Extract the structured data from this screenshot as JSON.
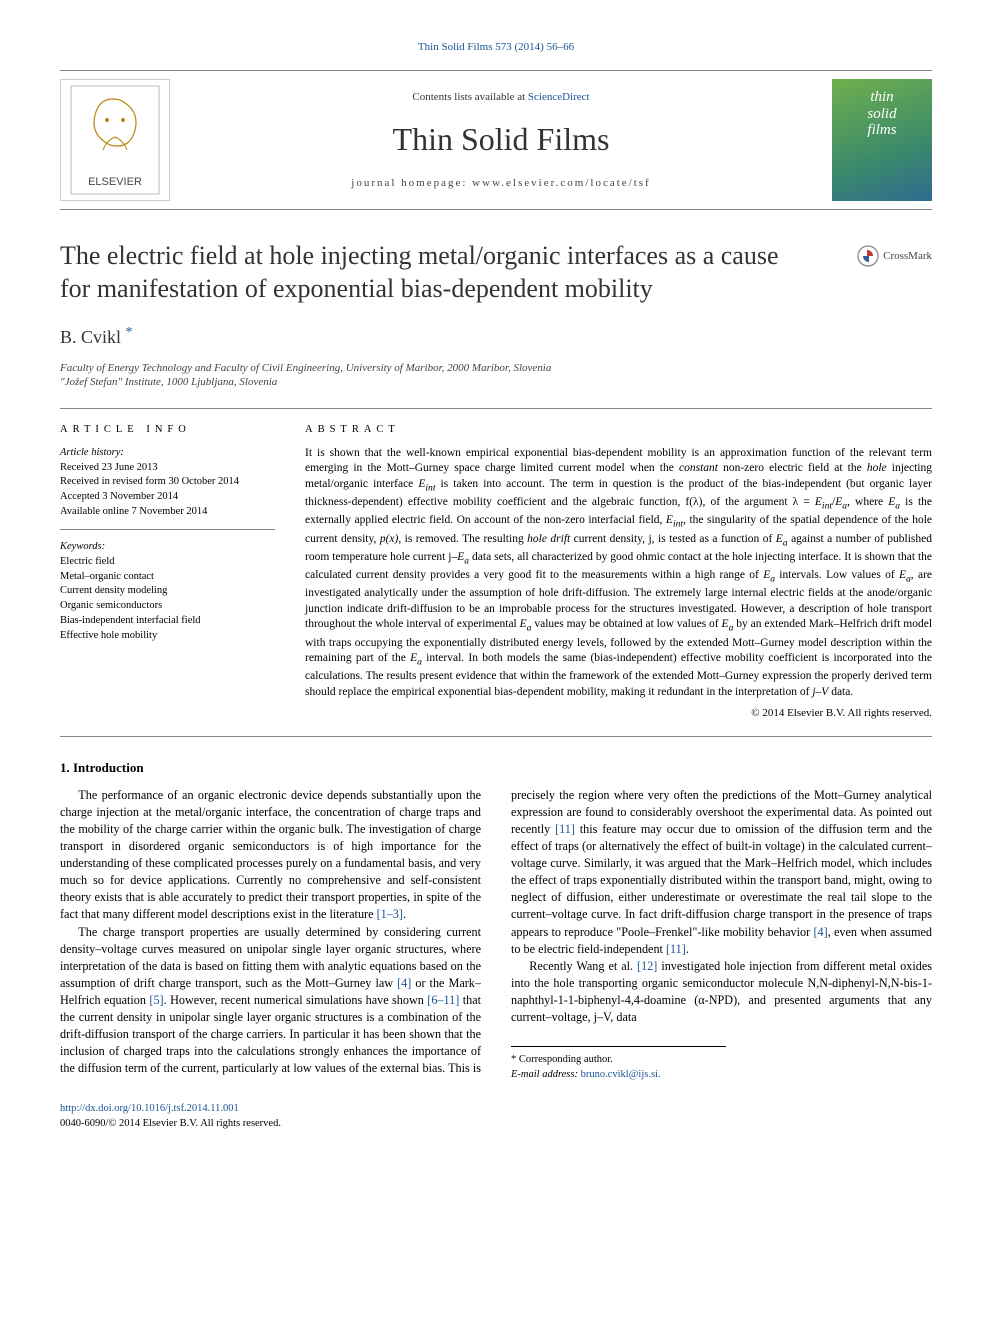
{
  "citation": "Thin Solid Films 573 (2014) 56–66",
  "header": {
    "contents_prefix": "Contents lists available at ",
    "contents_link": "ScienceDirect",
    "journal_name": "Thin Solid Films",
    "homepage_label": "journal homepage: www.elsevier.com/locate/tsf",
    "cover_line1": "thin",
    "cover_line2": "solid",
    "cover_line3": "films"
  },
  "crossmark_label": "CrossMark",
  "title": "The electric field at hole injecting metal/organic interfaces as a cause for manifestation of exponential bias-dependent mobility",
  "author": "B. Cvikl",
  "star_glyph": "*",
  "affiliations": [
    "Faculty of Energy Technology and Faculty of Civil Engineering, University of Maribor, 2000 Maribor, Slovenia",
    "\"Jožef Stefan\" Institute, 1000 Ljubljana, Slovenia"
  ],
  "article_info_heading": "ARTICLE INFO",
  "abstract_heading": "ABSTRACT",
  "history": {
    "label": "Article history:",
    "lines": [
      "Received 23 June 2013",
      "Received in revised form 30 October 2014",
      "Accepted 3 November 2014",
      "Available online 7 November 2014"
    ]
  },
  "keywords": {
    "label": "Keywords:",
    "items": [
      "Electric field",
      "Metal–organic contact",
      "Current density modeling",
      "Organic semiconductors",
      "Bias-independent interfacial field",
      "Effective hole mobility"
    ]
  },
  "abstract_text": "It is shown that the well-known empirical exponential bias-dependent mobility is an approximation function of the relevant term emerging in the Mott–Gurney space charge limited current model when the constant non-zero electric field at the hole injecting metal/organic interface Eint is taken into account. The term in question is the product of the bias-independent (but organic layer thickness-dependent) effective mobility coefficient and the algebraic function, f(λ), of the argument λ = Eint/Ea, where Ea is the externally applied electric field. On account of the non-zero interfacial field, Eint, the singularity of the spatial dependence of the hole current density, p(x), is removed. The resulting hole drift current density, j, is tested as a function of Ea against a number of published room temperature hole current j–Ea data sets, all characterized by good ohmic contact at the hole injecting interface. It is shown that the calculated current density provides a very good fit to the measurements within a high range of Ea intervals. Low values of Ea, are investigated analytically under the assumption of hole drift-diffusion. The extremely large internal electric fields at the anode/organic junction indicate drift-diffusion to be an improbable process for the structures investigated. However, a description of hole transport throughout the whole interval of experimental Ea values may be obtained at low values of Ea by an extended Mark–Helfrich drift model with traps occupying the exponentially distributed energy levels, followed by the extended Mott–Gurney model description within the remaining part of the Ea interval. In both models the same (bias-independent) effective mobility coefficient is incorporated into the calculations. The results present evidence that within the framework of the extended Mott–Gurney expression the properly derived term should replace the empirical exponential bias-dependent mobility, making it redundant in the interpretation of j–V data.",
  "abstract_copyright": "© 2014 Elsevier B.V. All rights reserved.",
  "section1_heading": "1. Introduction",
  "paragraphs": [
    "The performance of an organic electronic device depends substantially upon the charge injection at the metal/organic interface, the concentration of charge traps and the mobility of the charge carrier within the organic bulk. The investigation of charge transport in disordered organic semiconductors is of high importance for the understanding of these complicated processes purely on a fundamental basis, and very much so for device applications. Currently no comprehensive and self-consistent theory exists that is able accurately to predict their transport properties, in spite of the fact that many different model descriptions exist in the literature [1–3].",
    "The charge transport properties are usually determined by considering current density–voltage curves measured on unipolar single layer organic structures, where interpretation of the data is based on fitting them with analytic equations based on the assumption of drift charge transport, such as the Mott–Gurney law [4] or the Mark–Helfrich equation [5]. However, recent numerical simulations have shown [6–11] that the current density in unipolar single layer organic structures is a combination of the drift-diffusion transport of the charge carriers. In particular it has been shown that the inclusion of charged traps into the calculations strongly enhances the importance of the diffusion term of the current, particularly at low values of the external bias. This is precisely the region where very often the predictions of the Mott–Gurney analytical expression are found to considerably overshoot the experimental data. As pointed out recently [11] this feature may occur due to omission of the diffusion term and the effect of traps (or alternatively the effect of built-in voltage) in the calculated current–voltage curve. Similarly, it was argued that the Mark–Helfrich model, which includes the effect of traps exponentially distributed within the transport band, might, owing to neglect of diffusion, either underestimate or overestimate the real tail slope to the current–voltage curve. In fact drift-diffusion charge transport in the presence of traps appears to reproduce \"Poole–Frenkel\"-like mobility behavior [4], even when assumed to be electric field-independent [11].",
    "Recently Wang et al. [12] investigated hole injection from different metal oxides into the hole transporting organic semiconductor molecule N,N-diphenyl-N,N-bis-1-naphthyl-1-1-biphenyl-4,4-doamine (α-NPD), and presented arguments that any current–voltage, j–V, data"
  ],
  "footer": {
    "corr_author": "* Corresponding author.",
    "email_label": "E-mail address:",
    "email": "bruno.cvikl@ijs.si."
  },
  "doi": {
    "link": "http://dx.doi.org/10.1016/j.tsf.2014.11.001",
    "line2": "0040-6090/© 2014 Elsevier B.V. All rights reserved."
  },
  "colors": {
    "link": "#1a5494",
    "text": "#000000",
    "heading": "#333333",
    "rule": "#888888"
  }
}
